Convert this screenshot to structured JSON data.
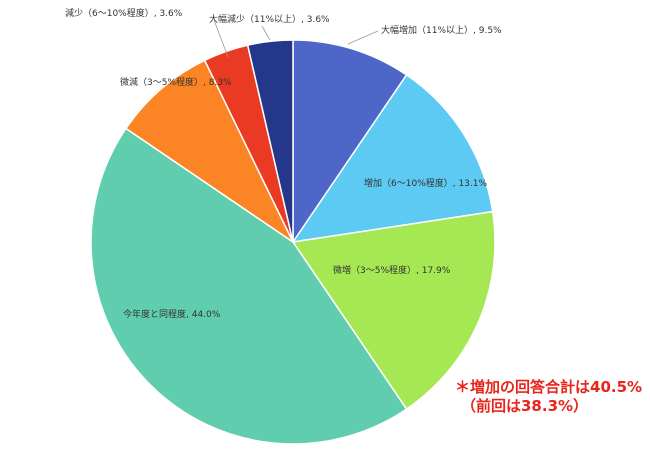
{
  "chart_data": {
    "type": "pie",
    "slices": [
      {
        "label": "大幅増加（11%以上）",
        "value": 9.5,
        "value_label": "9.5%",
        "color": "#4f66c9"
      },
      {
        "label": "増加（6～10%程度）",
        "value": 13.1,
        "value_label": "13.1%",
        "color": "#5ccaf2"
      },
      {
        "label": "微増（3～5%程度）",
        "value": 17.9,
        "value_label": "17.9%",
        "color": "#a6e854"
      },
      {
        "label": "今年度と同程度",
        "value": 44.0,
        "value_label": "44.0%",
        "color": "#5fcdae"
      },
      {
        "label": "微減（3～5%程度）",
        "value": 8.3,
        "value_label": "8.3%",
        "color": "#fb8424"
      },
      {
        "label": "減少（6～10%程度）",
        "value": 3.6,
        "value_label": "3.6%",
        "color": "#ea3a23"
      },
      {
        "label": "大幅減少（11%以上）",
        "value": 3.6,
        "value_label": "3.6%",
        "color": "#24378a"
      }
    ],
    "start": "12 o'clock",
    "direction": "clockwise",
    "label_separator": ", "
  },
  "note": {
    "line1": "＊増加の回答合計は40.5%",
    "line2": "（前回は38.3%）",
    "color": "#e8251b"
  }
}
